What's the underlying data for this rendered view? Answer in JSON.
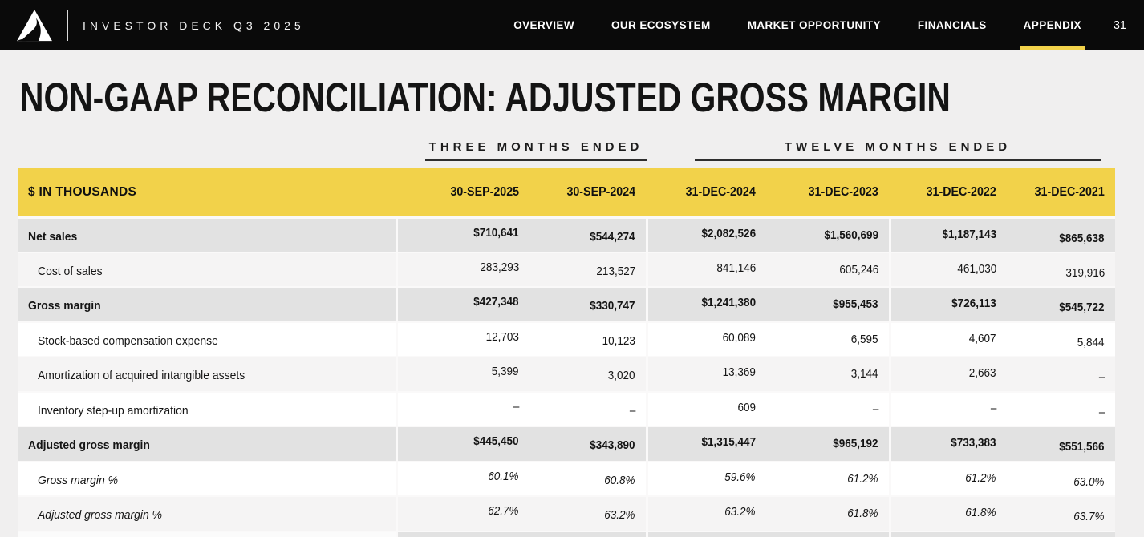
{
  "nav": {
    "brand": "INVESTOR DECK Q3 2025",
    "items": [
      {
        "label": "OVERVIEW",
        "active": false
      },
      {
        "label": "OUR ECOSYSTEM",
        "active": false
      },
      {
        "label": "MARKET OPPORTUNITY",
        "active": false
      },
      {
        "label": "FINANCIALS",
        "active": false
      },
      {
        "label": "APPENDIX",
        "active": true
      }
    ],
    "page_number": "31",
    "logo": "triangle-mark-icon"
  },
  "title": "NON-GAAP RECONCILIATION: ADJUSTED GROSS MARGIN",
  "column_groups": [
    {
      "label": "THREE MONTHS ENDED",
      "span": 2
    },
    {
      "label": "TWELVE MONTHS ENDED",
      "span": 4
    }
  ],
  "table": {
    "header": [
      "$ IN THOUSANDS",
      "30-SEP-2025",
      "30-SEP-2024",
      "31-DEC-2024",
      "31-DEC-2023",
      "31-DEC-2022",
      "31-DEC-2021"
    ],
    "rows": [
      {
        "label": "Net sales",
        "style": "r-total",
        "values": [
          "$710,641",
          "$544,274",
          "$2,082,526",
          "$1,560,699",
          "$1,187,143",
          "$865,638"
        ]
      },
      {
        "label": "Cost of sales",
        "style": "r-sub shaded",
        "values": [
          "283,293",
          "213,527",
          "841,146",
          "605,246",
          "461,030",
          "319,916"
        ]
      },
      {
        "label": "Gross margin",
        "style": "r-total",
        "values": [
          "$427,348",
          "$330,747",
          "$1,241,380",
          "$955,453",
          "$726,113",
          "$545,722"
        ]
      },
      {
        "label": "Stock-based compensation expense",
        "style": "r-sub",
        "values": [
          "12,703",
          "10,123",
          "60,089",
          "6,595",
          "4,607",
          "5,844"
        ]
      },
      {
        "label": "Amortization of acquired intangible assets",
        "style": "r-sub shaded",
        "values": [
          "5,399",
          "3,020",
          "13,369",
          "3,144",
          "2,663",
          "–"
        ]
      },
      {
        "label": "Inventory step-up amortization",
        "style": "r-sub",
        "values": [
          "–",
          "–",
          "609",
          "–",
          "–",
          "–"
        ]
      },
      {
        "label": "Adjusted gross margin",
        "style": "r-total",
        "values": [
          "$445,450",
          "$343,890",
          "$1,315,447",
          "$965,192",
          "$733,383",
          "$551,566"
        ]
      },
      {
        "label": "Gross margin %",
        "style": "r-pct",
        "values": [
          "60.1%",
          "60.8%",
          "59.6%",
          "61.2%",
          "61.2%",
          "63.0%"
        ]
      },
      {
        "label": "Adjusted gross margin %",
        "style": "r-pct shaded",
        "values": [
          "62.7%",
          "63.2%",
          "63.2%",
          "61.8%",
          "61.8%",
          "63.7%"
        ]
      }
    ]
  },
  "colors": {
    "accent_yellow": "#F2D24A",
    "nav_background": "#0A0A0A",
    "row_gray": "#E2E2E2",
    "row_light": "#F5F4F4",
    "page_background": "#F0EFEF"
  }
}
